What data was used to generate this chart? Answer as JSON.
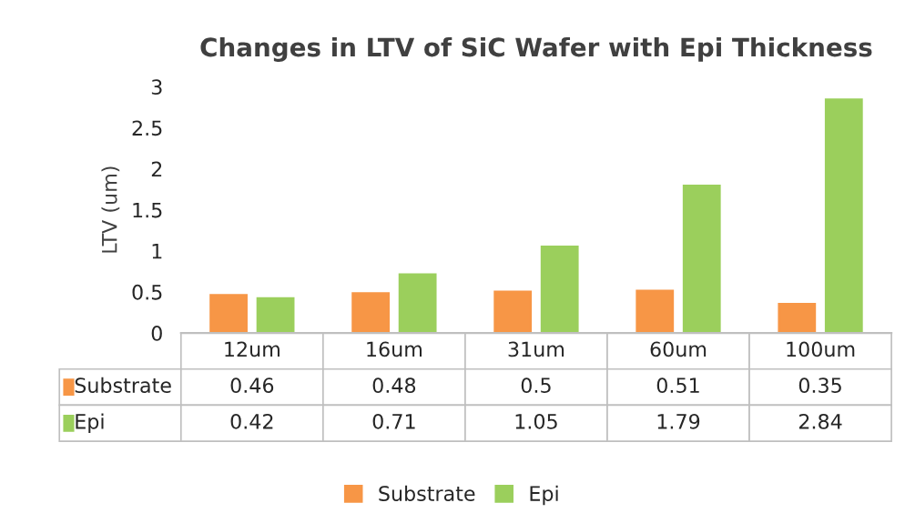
{
  "chart_data": {
    "type": "bar",
    "title": "Changes in LTV of SiC Wafer with Epi Thickness",
    "ylabel": "LTV (um)",
    "categories": [
      "12um",
      "16um",
      "31um",
      "60um",
      "100um"
    ],
    "series": [
      {
        "name": "Substrate",
        "color": "#f79646",
        "values": [
          0.46,
          0.48,
          0.5,
          0.51,
          0.35
        ]
      },
      {
        "name": "Epi",
        "color": "#9bcf5c",
        "values": [
          0.42,
          0.71,
          1.05,
          1.79,
          2.84
        ]
      }
    ],
    "ylim": [
      0,
      3
    ],
    "yticks": [
      0,
      0.5,
      1,
      1.5,
      2,
      2.5,
      3
    ],
    "grid": false,
    "legend": "bottom",
    "data_labels": true
  }
}
